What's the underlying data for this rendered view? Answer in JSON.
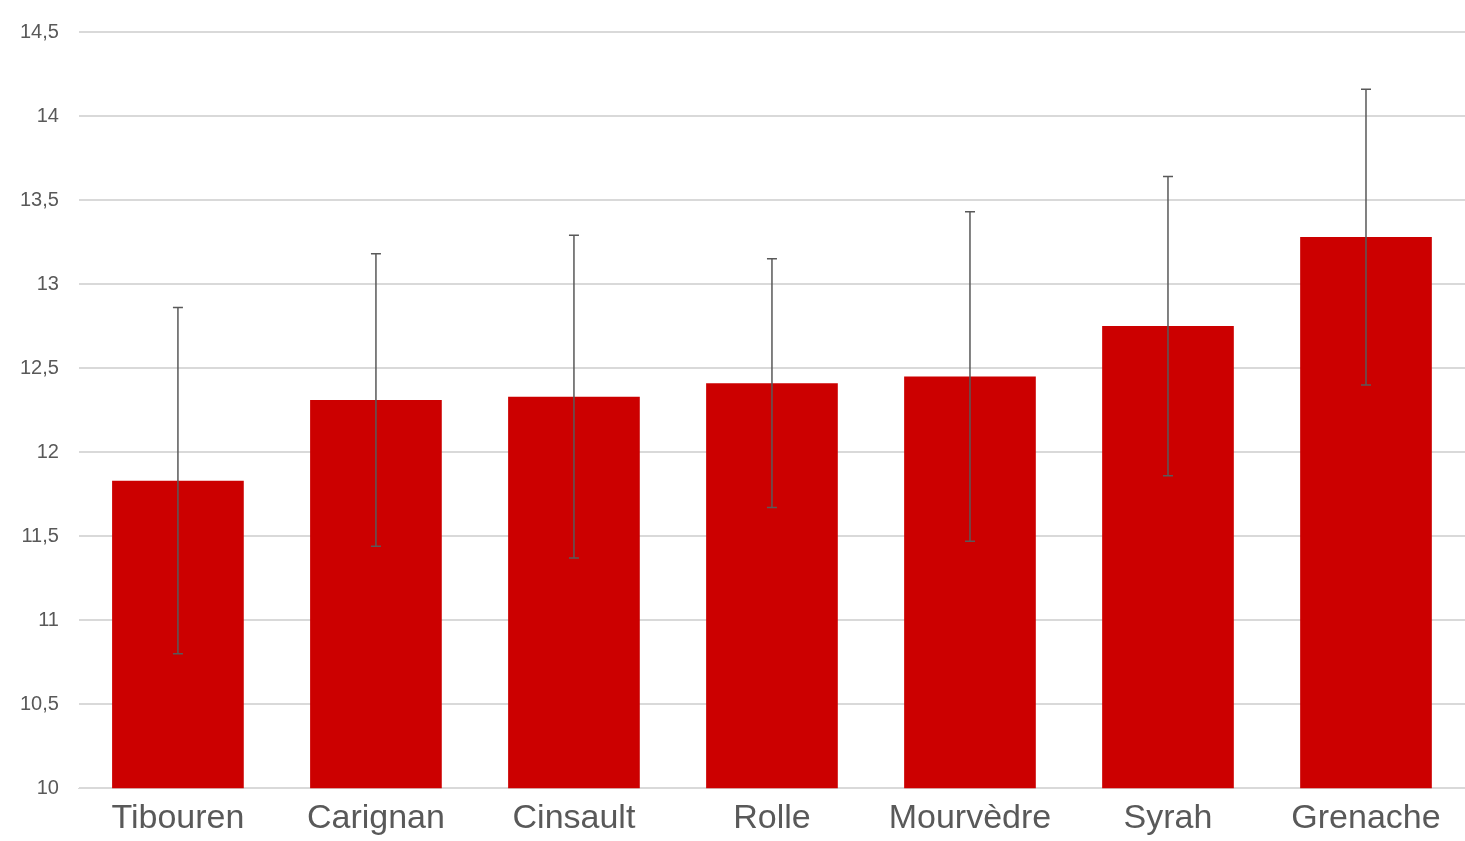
{
  "chart_data": {
    "type": "bar",
    "categories": [
      "Tibouren",
      "Carignan",
      "Cinsault",
      "Rolle",
      "Mourvèdre",
      "Syrah",
      "Grenache"
    ],
    "values": [
      11.83,
      12.31,
      12.33,
      12.41,
      12.45,
      12.75,
      13.28
    ],
    "errors": [
      1.03,
      0.87,
      0.96,
      0.74,
      0.98,
      0.89,
      0.88
    ],
    "color": "#cc0000",
    "ylim": [
      10,
      14.5
    ],
    "yticks": [
      10,
      {
        "value": 10.5,
        "label": "10,5"
      },
      11,
      {
        "value": 11.5,
        "label": "11,5"
      },
      12,
      {
        "value": 12.5,
        "label": "12,5"
      },
      13,
      {
        "value": 13.5,
        "label": "13,5"
      },
      14,
      {
        "value": 14.5,
        "label": "14,5"
      }
    ],
    "grid": "y",
    "legend": false
  }
}
